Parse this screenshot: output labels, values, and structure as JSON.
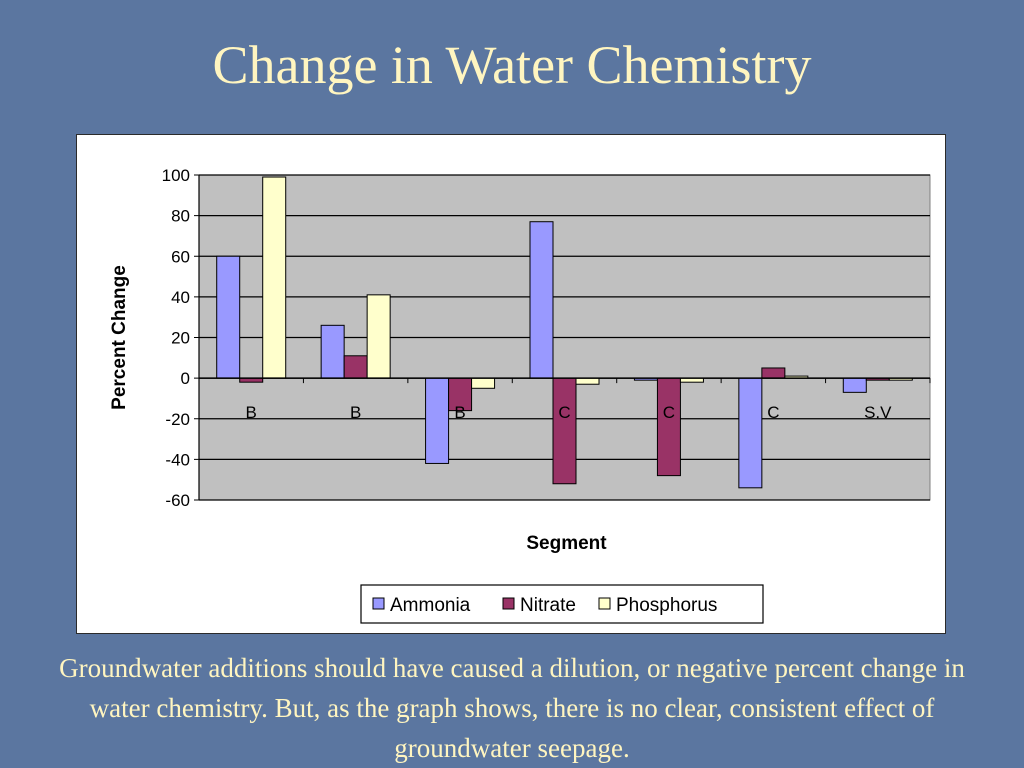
{
  "slide": {
    "title": "Change in Water Chemistry",
    "caption": "Groundwater additions should have caused a dilution, or negative percent  change in water chemistry.  But, as the graph shows, there is no clear, consistent effect of groundwater seepage."
  },
  "colors": {
    "background": "#5b76a0",
    "title_text": "#fff5c0",
    "plot_area": "#c0c0c0",
    "ammonia": "#9999ff",
    "nitrate": "#993366",
    "phosphorus": "#ffffcc"
  },
  "chart_data": {
    "type": "bar",
    "title": "",
    "xlabel": "Segment",
    "ylabel": "Percent Change",
    "categories": [
      "B",
      "B",
      "B",
      "C",
      "C",
      "C",
      "S.V"
    ],
    "series": [
      {
        "name": "Ammonia",
        "color": "#9999ff",
        "values": [
          60,
          26,
          -42,
          77,
          -1,
          -54,
          -7
        ]
      },
      {
        "name": "Nitrate",
        "color": "#993366",
        "values": [
          -2,
          11,
          -16,
          -52,
          -48,
          5,
          -1
        ]
      },
      {
        "name": "Phosphorus",
        "color": "#ffffcc",
        "values": [
          99,
          41,
          -5,
          -3,
          -2,
          1,
          -1
        ]
      }
    ],
    "ylim": [
      -60,
      100
    ],
    "yticks": [
      100,
      80,
      60,
      40,
      20,
      0,
      -20,
      -40,
      -60
    ],
    "grid": true,
    "legend_position": "bottom"
  }
}
